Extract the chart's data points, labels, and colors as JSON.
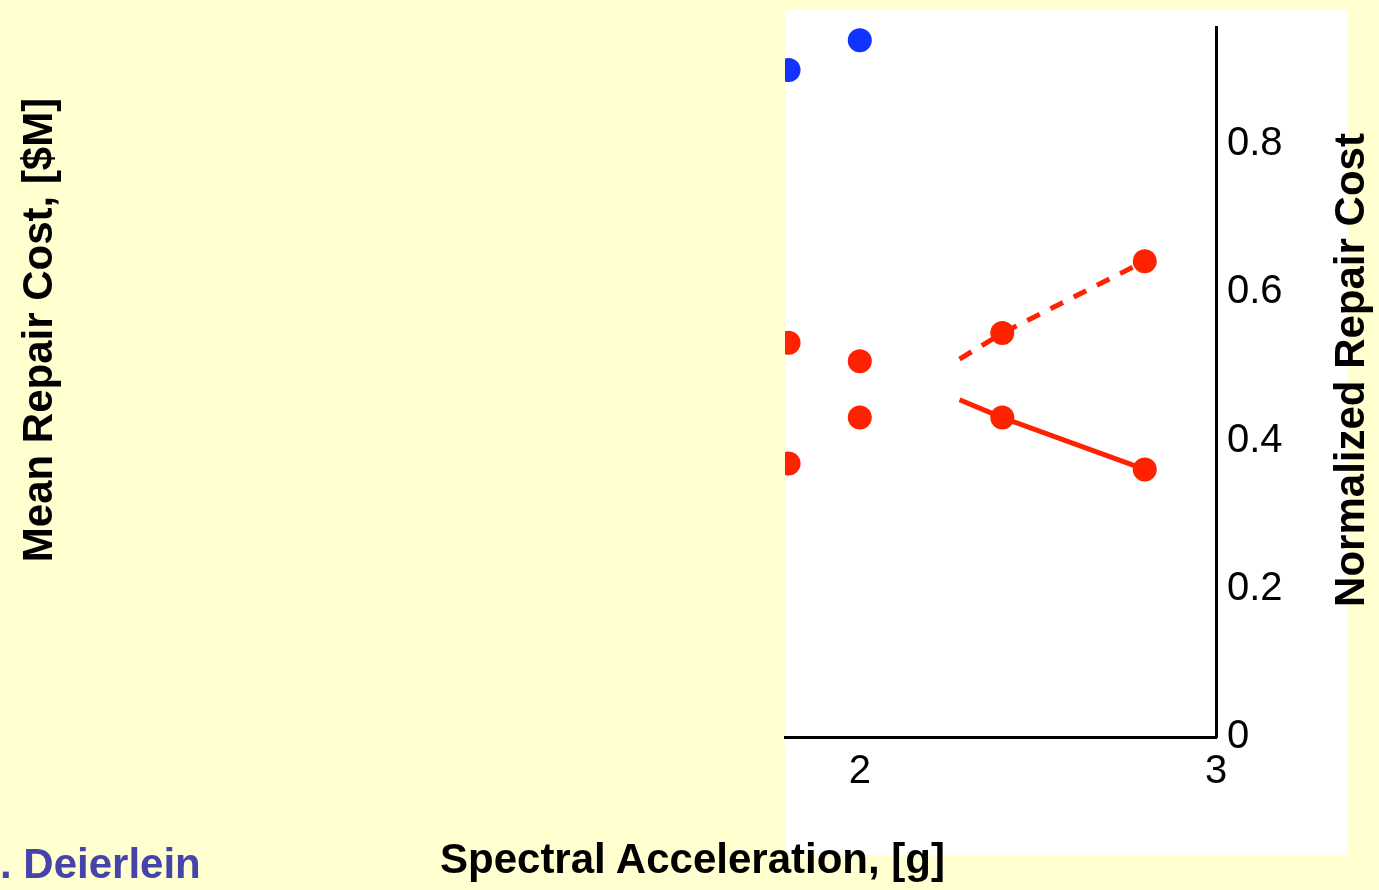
{
  "chart_data": {
    "type": "scatter",
    "xlabel": "Spectral Acceleration, [g]",
    "y2label": "Normalized Repair Cost",
    "annotations": [
      "Mean Repair Cost, [$M]",
      ". Deierlein"
    ],
    "xlim": [
      1.79,
      3
    ],
    "xticks": [
      2,
      3
    ],
    "y2lim": [
      0,
      0.958
    ],
    "y2ticks": [
      0,
      0.2,
      0.4,
      0.6,
      0.8
    ],
    "grid": false,
    "legend": false,
    "marker": "circle",
    "series": [
      {
        "color": "#1133ff",
        "axis": "y2",
        "x": [
          1.8,
          2.0
        ],
        "values": [
          0.9,
          0.94
        ]
      },
      {
        "color": "#ff2200",
        "axis": "y2",
        "x": [
          1.8,
          2.0,
          2.4,
          2.8
        ],
        "values": [
          0.532,
          0.507,
          0.545,
          0.642
        ]
      },
      {
        "color": "#ff2200",
        "axis": "y2",
        "x": [
          1.8,
          2.0,
          2.4,
          2.8
        ],
        "values": [
          0.369,
          0.431,
          0.431,
          0.361
        ]
      },
      {
        "type": "line",
        "color": "#ff2200",
        "axis": "y2",
        "marker": "none",
        "line_style": "dashed",
        "x": [
          2.28,
          2.4,
          2.8
        ],
        "values": [
          0.51,
          0.545,
          0.642
        ]
      },
      {
        "type": "line",
        "color": "#ff2200",
        "axis": "y2",
        "marker": "none",
        "line_style": "solid",
        "x": [
          2.28,
          2.4,
          2.8
        ],
        "values": [
          0.455,
          0.431,
          0.361
        ]
      }
    ]
  }
}
